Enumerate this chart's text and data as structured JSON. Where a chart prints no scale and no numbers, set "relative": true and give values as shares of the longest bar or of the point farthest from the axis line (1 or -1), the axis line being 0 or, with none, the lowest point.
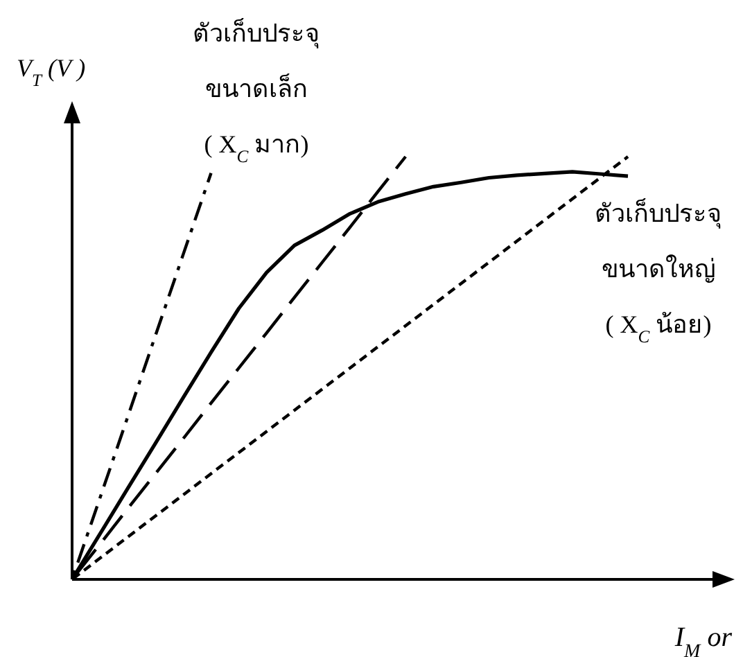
{
  "chart_data": {
    "type": "line",
    "relative": true,
    "xlabel": "I$_{M}$ or",
    "ylabel": "V$_{T}$ (V )",
    "annotations": [
      "ตัวเก็บประจุ ขนาดเล็ก ( X$_{C}$ มาก)",
      "ตัวเก็บประจุ ขนาดใหญ่ ( X$_{C}$ น้อย)"
    ],
    "categories": [
      null,
      null,
      null,
      null,
      null,
      null,
      null,
      null,
      null,
      null,
      null,
      null,
      null,
      null,
      null,
      null,
      null,
      null,
      null,
      null,
      null
    ],
    "series": [
      {
        "line_style": "solid",
        "color": "#000000",
        "values": [
          0,
          0.107,
          0.215,
          0.322,
          0.43,
          0.537,
          0.641,
          0.726,
          0.79,
          0.826,
          0.865,
          0.893,
          0.912,
          0.929,
          0.939,
          0.95,
          0.956,
          0.96,
          0.964,
          0.959,
          0.954
        ]
      },
      {
        "line_style": "dashed",
        "color": "#000000",
        "values": [
          0,
          0.083,
          0.167,
          0.25,
          0.333,
          0.417,
          0.5,
          0.583,
          0.667,
          0.75,
          0.833,
          0.917,
          1.0,
          null,
          null,
          null,
          null,
          null,
          null,
          null,
          null
        ]
      },
      {
        "line_style": "dashdot",
        "color": "#000000",
        "values": [
          0,
          0.192,
          0.384,
          0.577,
          0.769,
          0.961,
          null,
          null,
          null,
          null,
          null,
          null,
          null,
          null,
          null,
          null,
          null,
          null,
          null,
          null,
          null
        ]
      },
      {
        "line_style": "dotted",
        "color": "#000000",
        "values": [
          0,
          0.05,
          0.1,
          0.15,
          0.2,
          0.25,
          0.3,
          0.35,
          0.4,
          0.45,
          0.5,
          0.55,
          0.6,
          0.65,
          0.7,
          0.75,
          0.8,
          0.85,
          0.9,
          0.95,
          1.0
        ]
      }
    ]
  }
}
